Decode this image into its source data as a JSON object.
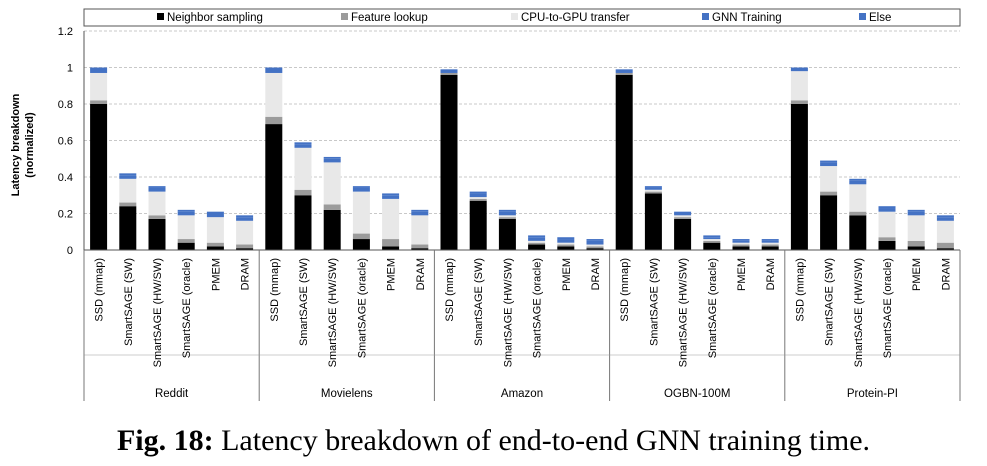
{
  "caption": {
    "label": "Fig. 18:",
    "text": " Latency breakdown of end-to-end GNN training time."
  },
  "chart_data": {
    "type": "bar",
    "stacked": true,
    "ylabel_line1": "Latency breakdown",
    "ylabel_line2": "(normalized)",
    "ylim": [
      0,
      1.2
    ],
    "yticks": [
      "0",
      "0.2",
      "0.4",
      "0.6",
      "0.8",
      "1",
      "1.2"
    ],
    "ytick_values": [
      0,
      0.2,
      0.4,
      0.6,
      0.8,
      1.0,
      1.2
    ],
    "grid": true,
    "legend_position": "top",
    "categories": [
      "SSD (mmap)",
      "SmartSAGE (SW)",
      "SmartSAGE (HW/SW)",
      "SmartSAGE (oracle)",
      "PMEM",
      "DRAM"
    ],
    "groups": [
      "Reddit",
      "Movielens",
      "Amazon",
      "OGBN-100M",
      "Protein-PI"
    ],
    "series": [
      {
        "name": "Neighbor sampling",
        "color": "#000000",
        "values": [
          [
            0.8,
            0.24,
            0.17,
            0.04,
            0.02,
            0.01
          ],
          [
            0.69,
            0.3,
            0.22,
            0.06,
            0.02,
            0.01
          ],
          [
            0.96,
            0.27,
            0.17,
            0.03,
            0.02,
            0.01
          ],
          [
            0.96,
            0.31,
            0.17,
            0.04,
            0.02,
            0.02
          ],
          [
            0.8,
            0.3,
            0.19,
            0.05,
            0.02,
            0.01
          ]
        ]
      },
      {
        "name": "Feature lookup",
        "color": "#9b9b9b",
        "values": [
          [
            0.02,
            0.02,
            0.02,
            0.02,
            0.02,
            0.02
          ],
          [
            0.04,
            0.03,
            0.03,
            0.03,
            0.04,
            0.02
          ],
          [
            0.01,
            0.01,
            0.01,
            0.01,
            0.01,
            0.01
          ],
          [
            0.01,
            0.01,
            0.01,
            0.01,
            0.01,
            0.01
          ],
          [
            0.02,
            0.02,
            0.02,
            0.02,
            0.03,
            0.03
          ]
        ]
      },
      {
        "name": "CPU-to-GPU transfer",
        "color": "#e8e8e8",
        "values": [
          [
            0.15,
            0.13,
            0.13,
            0.13,
            0.14,
            0.13
          ],
          [
            0.24,
            0.23,
            0.23,
            0.23,
            0.22,
            0.16
          ],
          [
            0.0,
            0.01,
            0.01,
            0.01,
            0.01,
            0.01
          ],
          [
            0.0,
            0.01,
            0.01,
            0.01,
            0.01,
            0.01
          ],
          [
            0.16,
            0.14,
            0.15,
            0.14,
            0.14,
            0.12
          ]
        ]
      },
      {
        "name": "GNN Training",
        "color": "#4472c4",
        "values": [
          [
            0.03,
            0.02,
            0.02,
            0.02,
            0.02,
            0.02
          ],
          [
            0.03,
            0.02,
            0.02,
            0.02,
            0.02,
            0.02
          ],
          [
            0.02,
            0.02,
            0.02,
            0.02,
            0.02,
            0.02
          ],
          [
            0.02,
            0.01,
            0.01,
            0.01,
            0.01,
            0.01
          ],
          [
            0.02,
            0.02,
            0.02,
            0.02,
            0.02,
            0.02
          ]
        ]
      },
      {
        "name": "Else",
        "color": "#4472c4",
        "values": [
          [
            0,
            0.01,
            0.01,
            0.01,
            0.01,
            0.01
          ],
          [
            0,
            0.01,
            0.01,
            0.01,
            0.01,
            0.01
          ],
          [
            0,
            0.01,
            0.01,
            0.01,
            0.01,
            0.01
          ],
          [
            0,
            0.01,
            0.01,
            0.01,
            0.01,
            0.01
          ],
          [
            0,
            0.01,
            0.01,
            0.01,
            0.01,
            0.01
          ]
        ]
      }
    ]
  }
}
